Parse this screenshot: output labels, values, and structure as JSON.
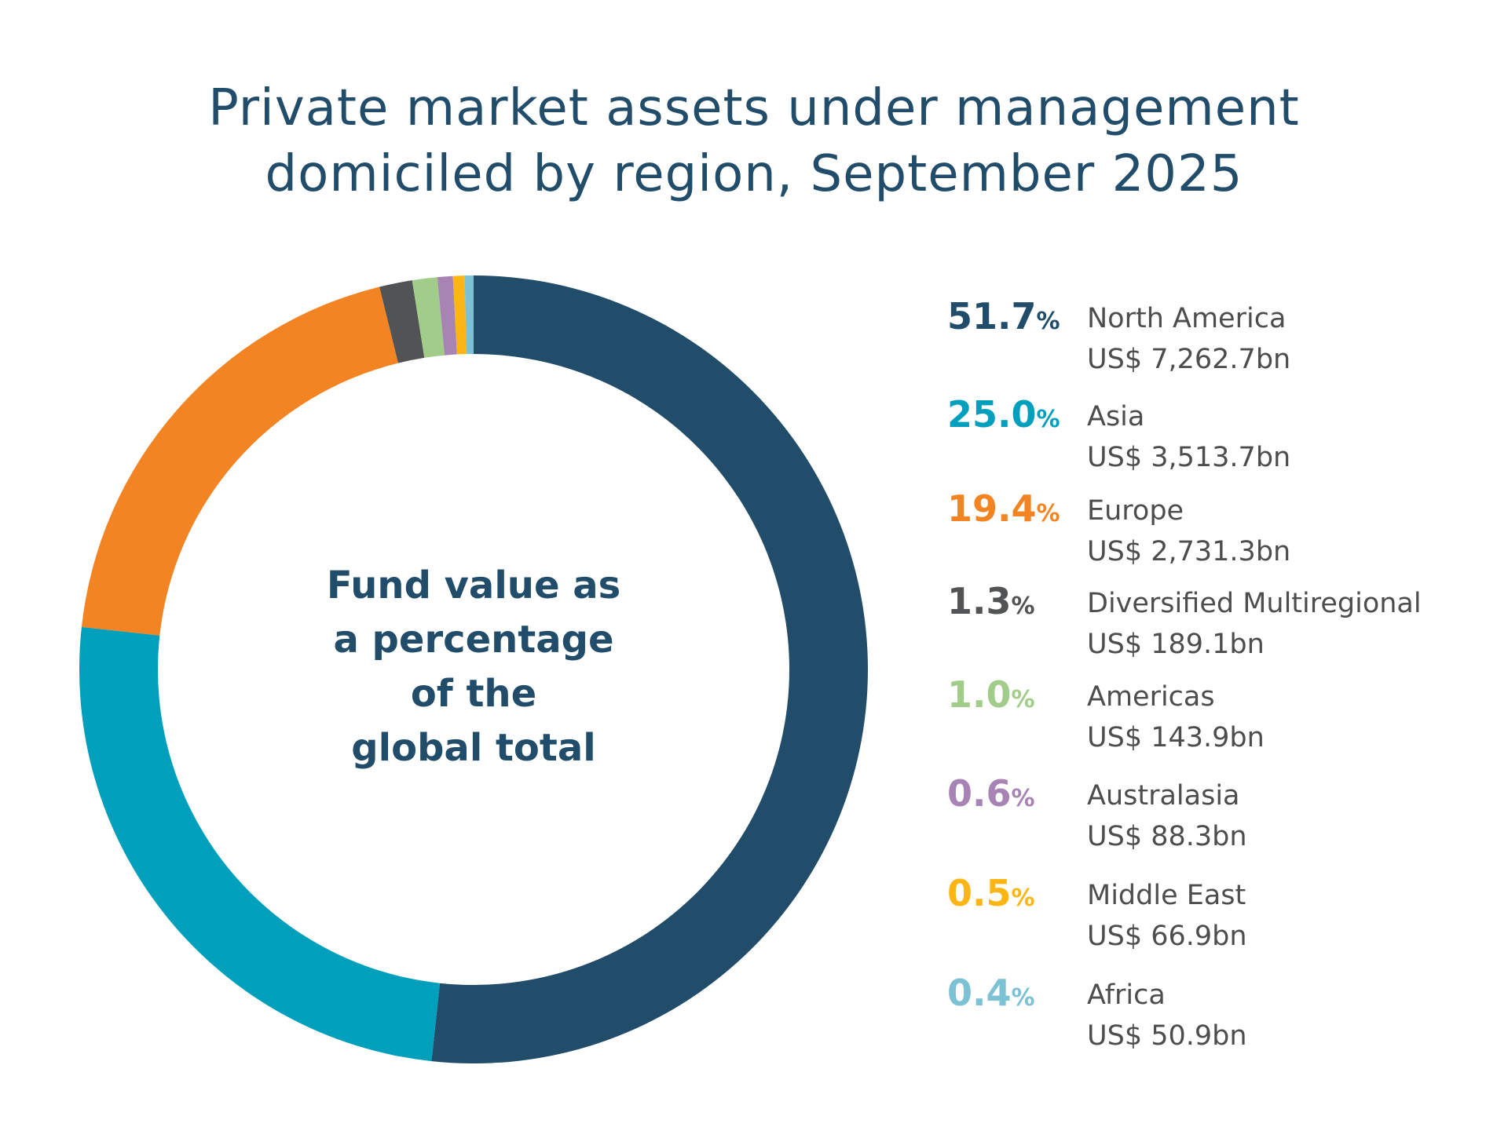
{
  "chart_data": {
    "type": "pie",
    "variant": "donut",
    "title_lines": [
      "Private market assets under management",
      "domiciled by region, September 2025"
    ],
    "center_label_lines": [
      "Fund value as",
      "a percentage",
      "of the",
      "global total"
    ],
    "legend_position": "right",
    "start_angle": "top, clockwise",
    "slices": [
      {
        "label": "North America",
        "percent": 51.7,
        "percent_text": "51.7",
        "value_text": "US$ 7,262.7bn",
        "value_bn": 7262.7,
        "color": "#214d6b"
      },
      {
        "label": "Asia",
        "percent": 25.0,
        "percent_text": "25.0",
        "value_text": "US$ 3,513.7bn",
        "value_bn": 3513.7,
        "color": "#00a0bd"
      },
      {
        "label": "Europe",
        "percent": 19.4,
        "percent_text": "19.4",
        "value_text": "US$ 2,731.3bn",
        "value_bn": 2731.3,
        "color": "#f38424"
      },
      {
        "label": "Diversified Multiregional",
        "percent": 1.3,
        "percent_text": "1.3",
        "value_text": "US$ 189.1bn",
        "value_bn": 189.1,
        "color": "#525354"
      },
      {
        "label": "Americas",
        "percent": 1.0,
        "percent_text": "1.0",
        "value_text": "US$ 143.9bn",
        "value_bn": 143.9,
        "color": "#a1cc8a"
      },
      {
        "label": "Australasia",
        "percent": 0.6,
        "percent_text": "0.6",
        "value_text": "US$ 88.3bn",
        "value_bn": 88.3,
        "color": "#a784b3"
      },
      {
        "label": "Middle East",
        "percent": 0.5,
        "percent_text": "0.5",
        "value_text": "US$ 66.9bn",
        "value_bn": 66.9,
        "color": "#fbb514"
      },
      {
        "label": "Africa",
        "percent": 0.4,
        "percent_text": "0.4",
        "value_text": "US$ 50.9bn",
        "value_bn": 50.9,
        "color": "#7cc1d4"
      }
    ],
    "percent_sign": "%"
  }
}
